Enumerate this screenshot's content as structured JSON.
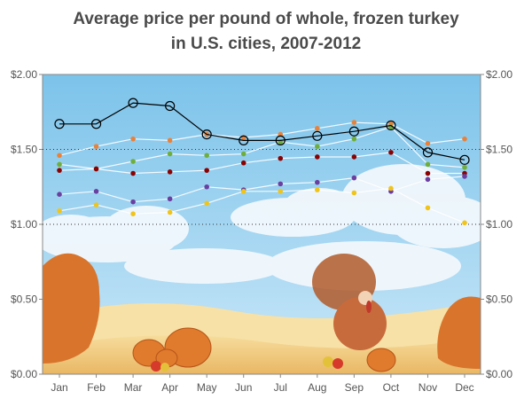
{
  "chart_data": {
    "type": "line",
    "title_lines": [
      "Average price per pound of whole, frozen turkey",
      "in U.S. cities, 2007-2012"
    ],
    "xlabel": "",
    "ylabel": "",
    "categories": [
      "Jan",
      "Feb",
      "Mar",
      "Apr",
      "May",
      "Jun",
      "Jul",
      "Aug",
      "Sep",
      "Oct",
      "Nov",
      "Dec"
    ],
    "ylim": [
      0,
      2.0
    ],
    "yticks": [
      0,
      0.5,
      1.0,
      1.5,
      2.0
    ],
    "ytick_labels": [
      "$0.00",
      "$0.50",
      "$1.00",
      "$1.50",
      "$2.00"
    ],
    "reference_lines": [
      1.0,
      1.5
    ],
    "grid": false,
    "legend": "none",
    "series": [
      {
        "values": [
          1.67,
          1.67,
          1.81,
          1.79,
          1.6,
          1.56,
          1.56,
          1.59,
          1.62,
          1.66,
          1.48,
          1.43
        ],
        "color": "#000000",
        "marker": "circle-open",
        "highlight": true
      },
      {
        "values": [
          1.46,
          1.52,
          1.57,
          1.56,
          1.6,
          1.58,
          1.6,
          1.64,
          1.68,
          1.67,
          1.54,
          1.57
        ],
        "color": "#e8823a",
        "marker": "dot"
      },
      {
        "values": [
          1.4,
          1.37,
          1.42,
          1.47,
          1.46,
          1.47,
          1.55,
          1.52,
          1.57,
          1.65,
          1.4,
          1.38
        ],
        "color": "#6fae3a",
        "marker": "dot"
      },
      {
        "values": [
          1.36,
          1.37,
          1.34,
          1.35,
          1.36,
          1.41,
          1.44,
          1.45,
          1.45,
          1.48,
          1.34,
          1.34
        ],
        "color": "#8b0000",
        "marker": "dot"
      },
      {
        "values": [
          1.2,
          1.22,
          1.15,
          1.17,
          1.25,
          1.23,
          1.27,
          1.28,
          1.31,
          1.22,
          1.3,
          1.32
        ],
        "color": "#6a3fa0",
        "marker": "dot"
      },
      {
        "values": [
          1.09,
          1.13,
          1.07,
          1.08,
          1.14,
          1.22,
          1.22,
          1.23,
          1.21,
          1.24,
          1.11,
          1.01
        ],
        "color": "#f0c419",
        "marker": "dot"
      }
    ],
    "background": {
      "sky_top": "#7cc3ea",
      "sky_bottom": "#c9e7f8",
      "field": "#f0c77a",
      "tree": "#d9742c",
      "pumpkin": "#e07a2c",
      "turkey": "#c86b3c"
    },
    "axis_color": "#888888",
    "line_color_pale": "#ffffff"
  }
}
